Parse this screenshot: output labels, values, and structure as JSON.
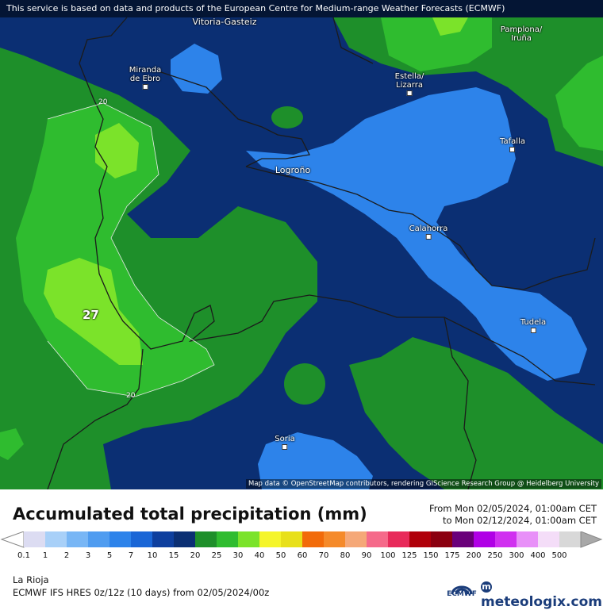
{
  "notice": "This service is based on data and products of the European Centre for Medium-range Weather Forecasts (ECMWF)",
  "attribution": "Map data © OpenStreetMap contributors, rendering GIScience Research Group @ Heidelberg University",
  "map": {
    "cities": [
      {
        "name": "Vitoria-Gasteiz",
        "lines": [
          "Vitoria-Gasteiz"
        ]
      },
      {
        "name": "Pamplona/Iruña",
        "lines": [
          "Pamplona/",
          "Iruña"
        ]
      },
      {
        "name": "Miranda de Ebro",
        "lines": [
          "Miranda",
          "de Ebro"
        ]
      },
      {
        "name": "Estella/Lizarra",
        "lines": [
          "Estella/",
          "Lizarra"
        ]
      },
      {
        "name": "Tafalla",
        "lines": [
          "Tafalla"
        ]
      },
      {
        "name": "Logroño",
        "lines": [
          "Logroño"
        ]
      },
      {
        "name": "Calahorra",
        "lines": [
          "Calahorra"
        ]
      },
      {
        "name": "Tudela",
        "lines": [
          "Tudela"
        ]
      },
      {
        "name": "Soria",
        "lines": [
          "Soria"
        ]
      }
    ],
    "max_value_label": "27",
    "isoline_labels": [
      "20",
      "20"
    ]
  },
  "legend": {
    "title": "Accumulated total precipitation (mm)",
    "from": "From Mon 02/05/2024, 01:00am CET",
    "to": "to Mon 02/12/2024, 01:00am CET",
    "ticks": [
      "0.1",
      "1",
      "2",
      "3",
      "5",
      "7",
      "10",
      "15",
      "20",
      "25",
      "30",
      "40",
      "50",
      "60",
      "70",
      "80",
      "90",
      "100",
      "125",
      "150",
      "175",
      "200",
      "250",
      "300",
      "400",
      "500"
    ],
    "colors": [
      "#dcdcf2",
      "#a8d0f8",
      "#78b6f5",
      "#4f9cf0",
      "#2d83ea",
      "#1a66d6",
      "#0e3f9e",
      "#0b2f73",
      "#1e8f2a",
      "#2fbc2f",
      "#7be32a",
      "#f5f52a",
      "#e8e01a",
      "#f26b0a",
      "#f58a2a",
      "#f5a878",
      "#f56a8a",
      "#e82a5a",
      "#b0000a",
      "#8b0010",
      "#6a007a",
      "#b000e6",
      "#d030f0",
      "#e890f8",
      "#f4ddf8",
      "#d8d8d8"
    ]
  },
  "footer": {
    "region": "La Rioja",
    "model": "ECMWF IFS HRES 0z/12z (10 days) from 02/05/2024/00z",
    "ecmwf": "ECMWF",
    "brand": "meteologix.com"
  }
}
